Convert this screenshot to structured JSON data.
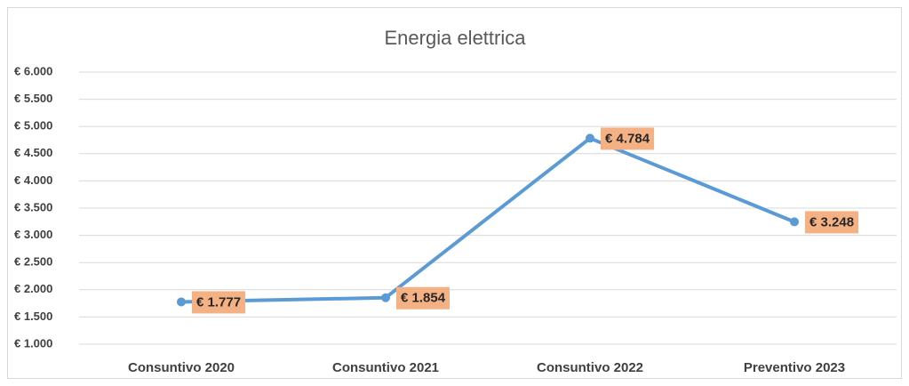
{
  "chart_data": {
    "type": "line",
    "title": "Energia elettrica",
    "categories": [
      "Consuntivo 2020",
      "Consuntivo 2021",
      "Consuntivo 2022",
      "Preventivo 2023"
    ],
    "values": [
      1777,
      1854,
      4784,
      3248
    ],
    "value_labels": [
      "€ 1.777",
      "€ 1.854",
      "€ 4.784",
      "€ 3.248"
    ],
    "color": "#5b9bd5",
    "label_color": "#f4b183",
    "ylim": [
      1000,
      6000
    ],
    "yticks": [
      {
        "value": 1000,
        "label": "€ 1.000"
      },
      {
        "value": 1500,
        "label": "€ 1.500"
      },
      {
        "value": 2000,
        "label": "€ 2.000"
      },
      {
        "value": 2500,
        "label": "€ 2.500"
      },
      {
        "value": 3000,
        "label": "€ 3.000"
      },
      {
        "value": 3500,
        "label": "€ 3.500"
      },
      {
        "value": 4000,
        "label": "€ 4.000"
      },
      {
        "value": 4500,
        "label": "€ 4.500"
      },
      {
        "value": 5000,
        "label": "€ 5.000"
      },
      {
        "value": 5500,
        "label": "€ 5.500"
      },
      {
        "value": 6000,
        "label": "€ 6.000"
      }
    ],
    "grid": true
  }
}
